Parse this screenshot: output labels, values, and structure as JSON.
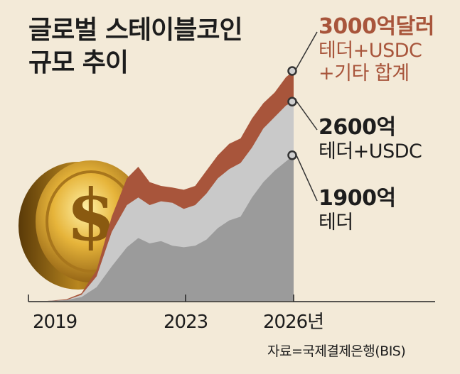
{
  "title_line1": "글로벌 스테이블코인",
  "title_line2": "규모 추이",
  "source": "자료=국제결제은행(BIS)",
  "chart_data": {
    "type": "area",
    "title": "글로벌 스테이블코인 규모 추이",
    "x_ticks": [
      "2019",
      "2023",
      "2026년"
    ],
    "x": [
      2019.0,
      2019.5,
      2020.0,
      2020.4,
      2020.8,
      2021.2,
      2021.6,
      2021.9,
      2022.2,
      2022.5,
      2022.8,
      2023.1,
      2023.4,
      2023.7,
      2024.0,
      2024.3,
      2024.6,
      2024.9,
      2025.2,
      2025.5,
      2025.8,
      2026.0
    ],
    "series": [
      {
        "name": "테더",
        "values": [
          0,
          0,
          1,
          5,
          18,
          45,
          70,
          82,
          75,
          78,
          72,
          70,
          72,
          80,
          95,
          105,
          110,
          135,
          155,
          170,
          182,
          190
        ]
      },
      {
        "name": "테더+USDC",
        "values": [
          0,
          0,
          1,
          8,
          32,
          90,
          125,
          135,
          125,
          130,
          128,
          120,
          125,
          140,
          160,
          172,
          180,
          200,
          225,
          240,
          255,
          260
        ]
      },
      {
        "name": "테더+USDC+기타 합계",
        "values": [
          0,
          0,
          2,
          10,
          40,
          110,
          160,
          175,
          155,
          150,
          148,
          145,
          150,
          170,
          190,
          205,
          212,
          238,
          258,
          272,
          292,
          300
        ]
      }
    ],
    "annotations": [
      {
        "value": "3000억달러",
        "label": "테더+USDC\n+기타 합계",
        "color": "#a8553b"
      },
      {
        "value": "2600억",
        "label": "테더+USDC"
      },
      {
        "value": "1900억",
        "label": "테더"
      }
    ],
    "unit": "억달러",
    "colors": {
      "total": "#a8553b",
      "tether_usdc": "#c9c9c9",
      "tether": "#9b9b9b",
      "background": "#f3ead8"
    },
    "coin_icon": "gold-dollar-coin",
    "grid": false,
    "legend": "none"
  }
}
